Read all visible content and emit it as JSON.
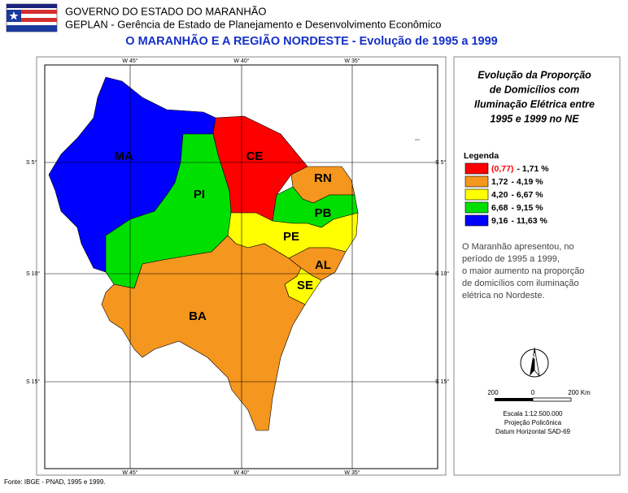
{
  "header": {
    "government": "GOVERNO DO ESTADO DO MARANHÃO",
    "agency": "GEPLAN - Gerência de Estado de Planejamento e Desenvolvimento Econômico",
    "title": "O MARANHÃO E A REGIÃO NORDESTE - Evolução de 1995 a 1999"
  },
  "map": {
    "longitude_labels": [
      "W 45°",
      "W 40°",
      "W 35°"
    ],
    "latitude_labels": [
      "S 5°",
      "S 10°",
      "S 15°"
    ],
    "states": [
      {
        "name": "MA",
        "color": "#0000ff"
      },
      {
        "name": "PI",
        "color": "#00e000"
      },
      {
        "name": "CE",
        "color": "#ff0000"
      },
      {
        "name": "RN",
        "color": "#f5961e"
      },
      {
        "name": "PB",
        "color": "#00e000"
      },
      {
        "name": "PE",
        "color": "#ffff00"
      },
      {
        "name": "AL",
        "color": "#f5961e"
      },
      {
        "name": "SE",
        "color": "#ffff00"
      },
      {
        "name": "BA",
        "color": "#f5961e"
      }
    ]
  },
  "panel": {
    "title_lines": [
      "Evolução da Proporção",
      "de Domicílios com",
      "Iluminação Elétrica entre",
      "1995 e 1999 no NE"
    ],
    "note_lines": [
      "O Maranhão apresentou, no",
      "período de 1995 a 1999,",
      "o maior aumento na proporção",
      "de domicílios com iluminação",
      "elétrica no Nordeste.",
      ""
    ],
    "north": "N",
    "scale_labels": [
      "200",
      "0",
      "200 Km"
    ],
    "scale": "Escala 1:12.500.000",
    "projection": "Projeção Policônica",
    "datum": "Datum Horizontal SAD-69"
  },
  "legend": {
    "title": "Legenda",
    "items": [
      {
        "from": "(0,77)",
        "to": "- 1,71 %",
        "color": "#ff0000",
        "from_color": "#ff0000"
      },
      {
        "from": "1,72",
        "to": "- 4,19 %",
        "color": "#f5961e"
      },
      {
        "from": "4,20",
        "to": "- 6,67 %",
        "color": "#ffff00"
      },
      {
        "from": "6,68",
        "to": "- 9,15 %",
        "color": "#00e000"
      },
      {
        "from": "9,16",
        "to": "- 11,63 %",
        "color": "#0000ff"
      }
    ]
  },
  "footer": {
    "source": "Fonte: IBGE - PNAD, 1995 e 1999."
  }
}
